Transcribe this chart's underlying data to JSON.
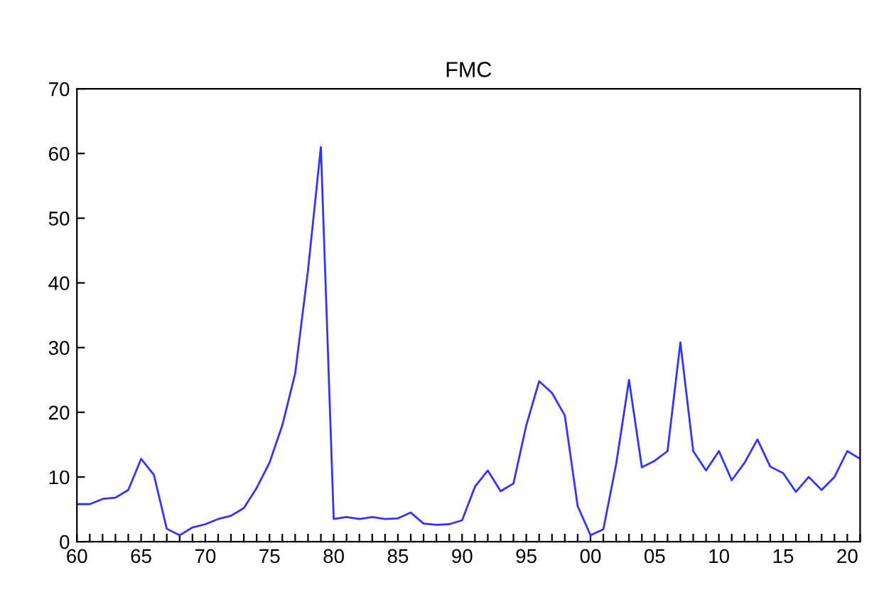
{
  "chart_data": {
    "type": "line",
    "title": "FMC",
    "x": [
      1960,
      1961,
      1962,
      1963,
      1964,
      1965,
      1966,
      1967,
      1968,
      1969,
      1970,
      1971,
      1972,
      1973,
      1974,
      1975,
      1976,
      1977,
      1978,
      1979,
      1980,
      1981,
      1982,
      1983,
      1984,
      1985,
      1986,
      1987,
      1988,
      1989,
      1990,
      1991,
      1992,
      1993,
      1994,
      1995,
      1996,
      1997,
      1998,
      1999,
      2000,
      2001,
      2002,
      2003,
      2004,
      2005,
      2006,
      2007,
      2008,
      2009,
      2010,
      2011,
      2012,
      2013,
      2014,
      2015,
      2016,
      2017,
      2018,
      2019,
      2020,
      2021
    ],
    "series": [
      {
        "color": "#3333ff",
        "values": [
          5.8,
          5.8,
          6.6,
          6.8,
          8.0,
          12.8,
          10.3,
          2.0,
          1.0,
          2.2,
          2.7,
          3.5,
          4.0,
          5.2,
          8.3,
          12.2,
          18,
          26,
          42,
          61,
          3.5,
          3.8,
          3.5,
          3.8,
          3.5,
          3.6,
          4.5,
          2.8,
          2.6,
          2.7,
          3.3,
          8.5,
          11,
          7.8,
          9,
          18,
          24.8,
          23,
          19.5,
          5.5,
          1.0,
          1.9,
          12,
          25,
          11.5,
          12.5,
          14,
          30.8,
          14,
          11,
          14,
          9.5,
          12.2,
          15.8,
          11.6,
          10.6,
          7.7,
          10,
          8,
          10,
          14,
          12.8
        ]
      }
    ],
    "xlim": [
      1960,
      2021
    ],
    "ylim": [
      0,
      70
    ],
    "yticks": [
      0,
      10,
      20,
      30,
      40,
      50,
      60,
      70
    ],
    "xticks": [
      {
        "value": 1960,
        "label": "60"
      },
      {
        "value": 1961,
        "label": null
      },
      {
        "value": 1962,
        "label": null
      },
      {
        "value": 1963,
        "label": null
      },
      {
        "value": 1964,
        "label": null
      },
      {
        "value": 1965,
        "label": "65"
      },
      {
        "value": 1966,
        "label": null
      },
      {
        "value": 1967,
        "label": null
      },
      {
        "value": 1968,
        "label": null
      },
      {
        "value": 1969,
        "label": null
      },
      {
        "value": 1970,
        "label": "70"
      },
      {
        "value": 1971,
        "label": null
      },
      {
        "value": 1972,
        "label": null
      },
      {
        "value": 1973,
        "label": null
      },
      {
        "value": 1974,
        "label": null
      },
      {
        "value": 1975,
        "label": "75"
      },
      {
        "value": 1976,
        "label": null
      },
      {
        "value": 1977,
        "label": null
      },
      {
        "value": 1978,
        "label": null
      },
      {
        "value": 1979,
        "label": null
      },
      {
        "value": 1980,
        "label": "80"
      },
      {
        "value": 1981,
        "label": null
      },
      {
        "value": 1982,
        "label": null
      },
      {
        "value": 1983,
        "label": null
      },
      {
        "value": 1984,
        "label": null
      },
      {
        "value": 1985,
        "label": "85"
      },
      {
        "value": 1986,
        "label": null
      },
      {
        "value": 1987,
        "label": null
      },
      {
        "value": 1988,
        "label": null
      },
      {
        "value": 1989,
        "label": null
      },
      {
        "value": 1990,
        "label": "90"
      },
      {
        "value": 1991,
        "label": null
      },
      {
        "value": 1992,
        "label": null
      },
      {
        "value": 1993,
        "label": null
      },
      {
        "value": 1994,
        "label": null
      },
      {
        "value": 1995,
        "label": "95"
      },
      {
        "value": 1996,
        "label": null
      },
      {
        "value": 1997,
        "label": null
      },
      {
        "value": 1998,
        "label": null
      },
      {
        "value": 1999,
        "label": null
      },
      {
        "value": 2000,
        "label": "00"
      },
      {
        "value": 2001,
        "label": null
      },
      {
        "value": 2002,
        "label": null
      },
      {
        "value": 2003,
        "label": null
      },
      {
        "value": 2004,
        "label": null
      },
      {
        "value": 2005,
        "label": "05"
      },
      {
        "value": 2006,
        "label": null
      },
      {
        "value": 2007,
        "label": null
      },
      {
        "value": 2008,
        "label": null
      },
      {
        "value": 2009,
        "label": null
      },
      {
        "value": 2010,
        "label": "10"
      },
      {
        "value": 2011,
        "label": null
      },
      {
        "value": 2012,
        "label": null
      },
      {
        "value": 2013,
        "label": null
      },
      {
        "value": 2014,
        "label": null
      },
      {
        "value": 2015,
        "label": "15"
      },
      {
        "value": 2016,
        "label": null
      },
      {
        "value": 2017,
        "label": null
      },
      {
        "value": 2018,
        "label": null
      },
      {
        "value": 2019,
        "label": null
      },
      {
        "value": 2020,
        "label": "20"
      },
      {
        "value": 2021,
        "label": null
      }
    ],
    "grid": false
  }
}
